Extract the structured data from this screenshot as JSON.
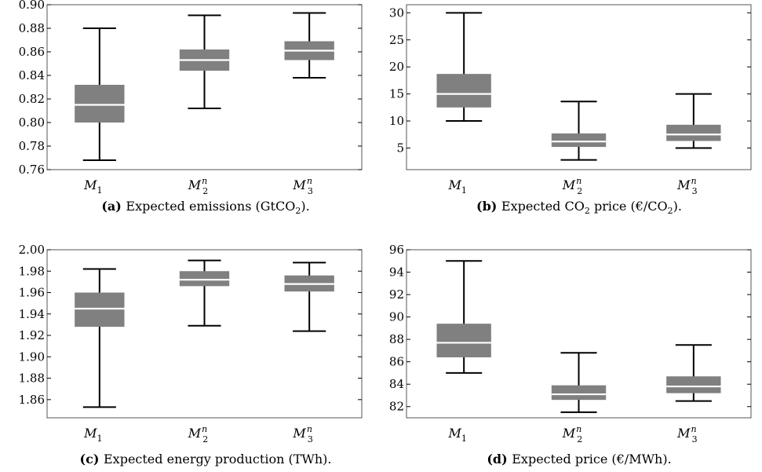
{
  "chart_data": [
    {
      "type": "box",
      "label": "(a)",
      "caption": {
        "pre": "Expected emissions (GtCO",
        "sub": "2",
        "post": ")."
      },
      "categories": [
        {
          "base": "M",
          "sub": "1",
          "sup": ""
        },
        {
          "base": "M",
          "sub": "2",
          "sup": "n"
        },
        {
          "base": "M",
          "sub": "3",
          "sup": "n"
        }
      ],
      "ylim": [
        0.76,
        0.9
      ],
      "yticks": [
        0.76,
        0.78,
        0.8,
        0.82,
        0.84,
        0.86,
        0.88,
        0.9
      ],
      "tick_decimals": 2,
      "boxes": [
        {
          "min": 0.768,
          "q1": 0.8,
          "median": 0.815,
          "q3": 0.832,
          "max": 0.88
        },
        {
          "min": 0.812,
          "q1": 0.844,
          "median": 0.853,
          "q3": 0.862,
          "max": 0.891
        },
        {
          "min": 0.838,
          "q1": 0.853,
          "median": 0.861,
          "q3": 0.869,
          "max": 0.893
        }
      ]
    },
    {
      "type": "box",
      "label": "(b)",
      "caption": {
        "pre": "Expected CO",
        "sub": "2",
        "post": " price (€/CO",
        "sub2": "2",
        "post2": ")."
      },
      "categories": [
        {
          "base": "M",
          "sub": "1",
          "sup": ""
        },
        {
          "base": "M",
          "sub": "2",
          "sup": "n"
        },
        {
          "base": "M",
          "sub": "3",
          "sup": "n"
        }
      ],
      "ylim": [
        1.0,
        31.5
      ],
      "yticks": [
        5,
        10,
        15,
        20,
        25,
        30
      ],
      "tick_decimals": 0,
      "boxes": [
        {
          "min": 10.0,
          "q1": 12.5,
          "median": 15.0,
          "q3": 18.7,
          "max": 30.0
        },
        {
          "min": 2.8,
          "q1": 5.2,
          "median": 6.2,
          "q3": 7.7,
          "max": 13.6
        },
        {
          "min": 5.0,
          "q1": 6.3,
          "median": 7.5,
          "q3": 9.3,
          "max": 15.0
        }
      ]
    },
    {
      "type": "box",
      "label": "(c)",
      "caption": {
        "pre": "Expected energy production (TWh).",
        "sub": "",
        "post": ""
      },
      "categories": [
        {
          "base": "M",
          "sub": "1",
          "sup": ""
        },
        {
          "base": "M",
          "sub": "2",
          "sup": "n"
        },
        {
          "base": "M",
          "sub": "3",
          "sup": "n"
        }
      ],
      "ylim": [
        1.843,
        2.0
      ],
      "yticks": [
        1.86,
        1.88,
        1.9,
        1.92,
        1.94,
        1.96,
        1.98,
        2.0
      ],
      "tick_decimals": 2,
      "boxes": [
        {
          "min": 1.853,
          "q1": 1.928,
          "median": 1.945,
          "q3": 1.96,
          "max": 1.982
        },
        {
          "min": 1.929,
          "q1": 1.966,
          "median": 1.972,
          "q3": 1.98,
          "max": 1.99
        },
        {
          "min": 1.924,
          "q1": 1.961,
          "median": 1.968,
          "q3": 1.976,
          "max": 1.988
        }
      ]
    },
    {
      "type": "box",
      "label": "(d)",
      "caption": {
        "pre": "Expected price (€/MWh).",
        "sub": "",
        "post": ""
      },
      "categories": [
        {
          "base": "M",
          "sub": "1",
          "sup": ""
        },
        {
          "base": "M",
          "sub": "2",
          "sup": "n"
        },
        {
          "base": "M",
          "sub": "3",
          "sup": "n"
        }
      ],
      "ylim": [
        81.0,
        96.0
      ],
      "yticks": [
        82,
        84,
        86,
        88,
        90,
        92,
        94,
        96
      ],
      "tick_decimals": 0,
      "boxes": [
        {
          "min": 85.0,
          "q1": 86.4,
          "median": 87.7,
          "q3": 89.4,
          "max": 95.0
        },
        {
          "min": 81.5,
          "q1": 82.6,
          "median": 83.1,
          "q3": 83.9,
          "max": 86.8
        },
        {
          "min": 82.5,
          "q1": 83.2,
          "median": 83.8,
          "q3": 84.7,
          "max": 87.5
        }
      ]
    }
  ],
  "style": {
    "box_fill": "#808080",
    "median_color": "#ffffff",
    "whisker_color": "#000000",
    "frame_color": "#000000"
  }
}
